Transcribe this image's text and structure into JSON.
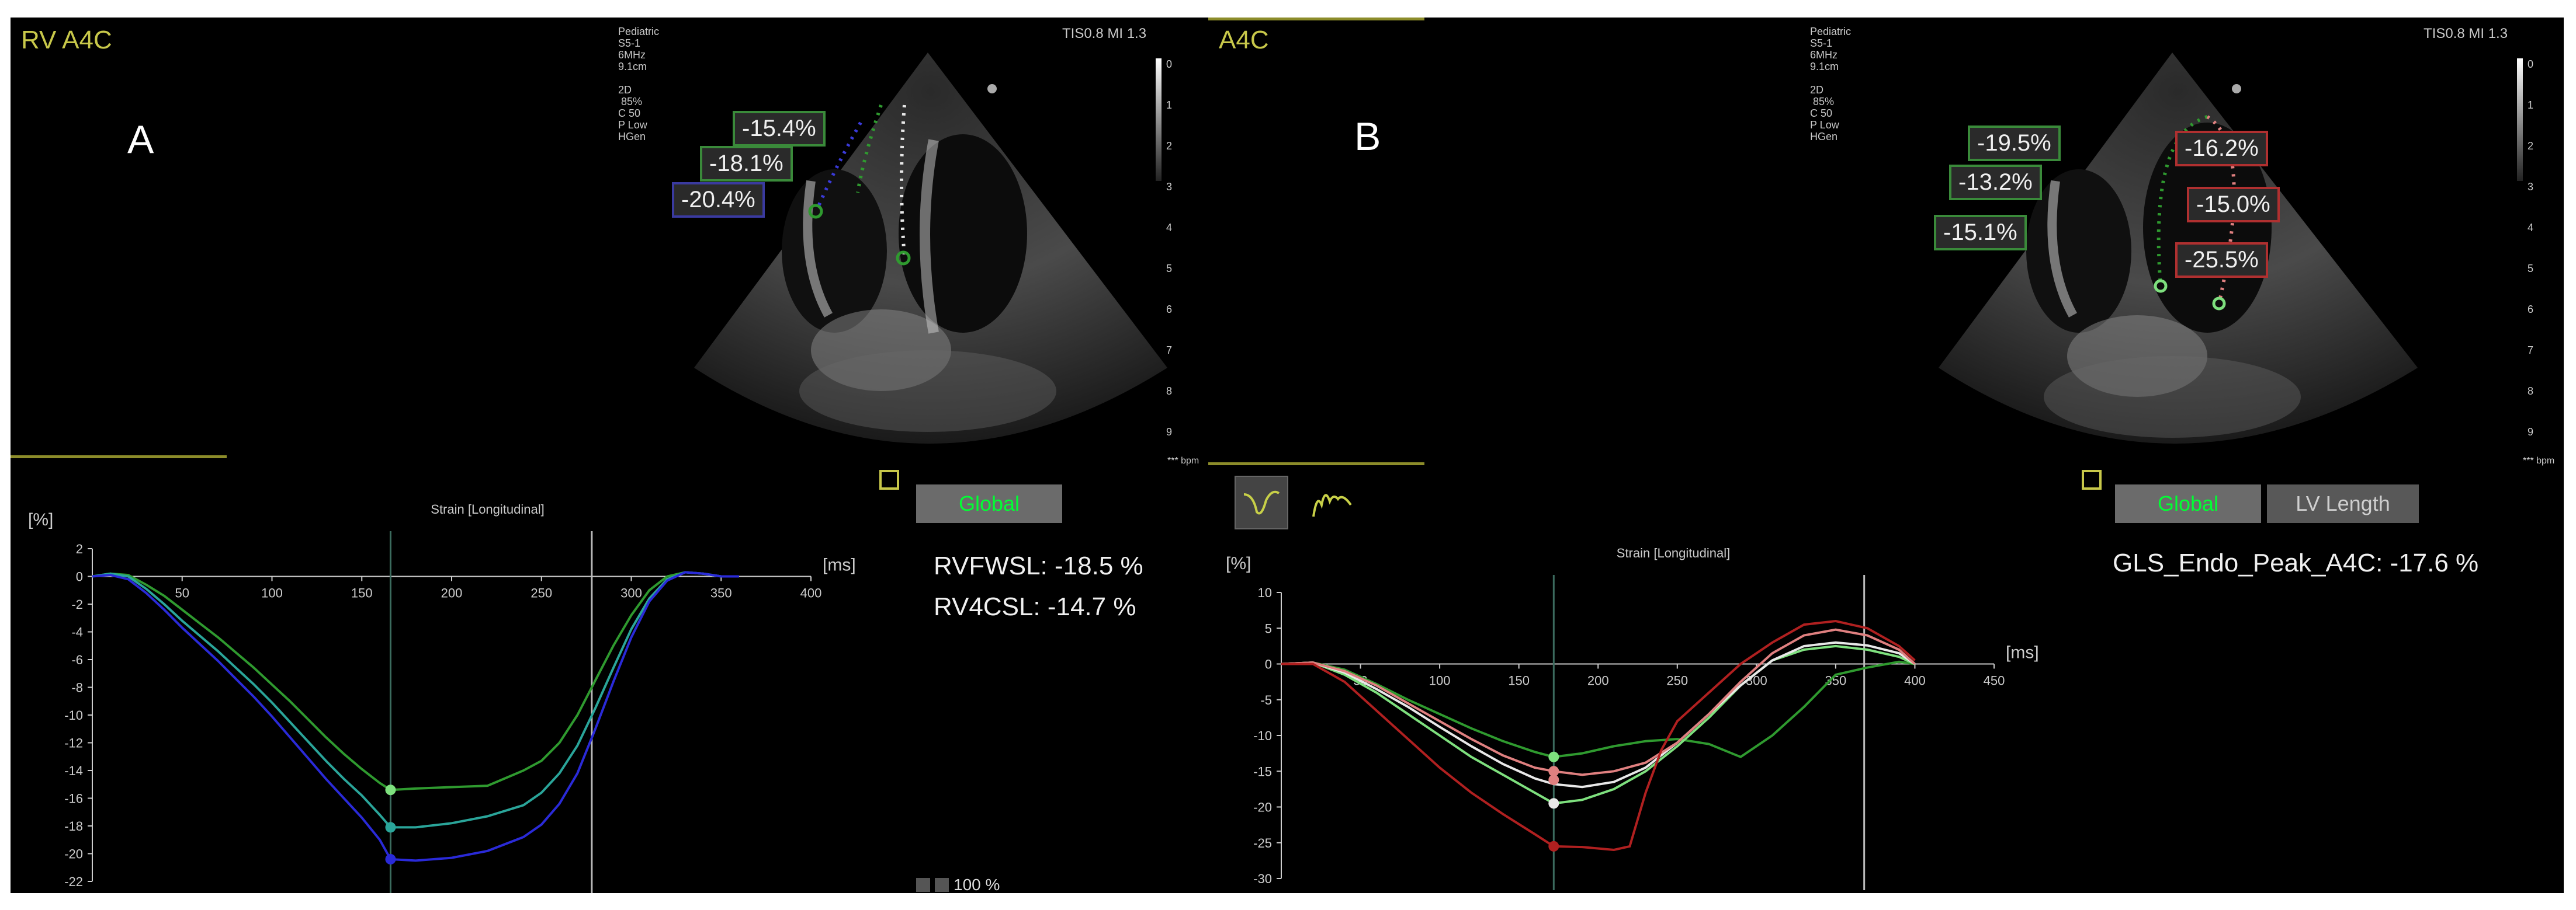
{
  "panel_a": {
    "view_title": "RV A4C",
    "letter": "A",
    "meta_lines": "Pediatric\nS5-1\n6MHz\n9.1cm\n\n2D\n 85%\nC 50\nP Low\nHGen",
    "ti_mi": "TIS0.8  MI 1.3",
    "segments": [
      "-15.4%",
      "-18.1%",
      "-20.4%"
    ],
    "depth_labels": [
      "0",
      "1",
      "2",
      "3",
      "4",
      "5",
      "6",
      "7",
      "8",
      "9"
    ],
    "bpm_label": "*** bpm",
    "global_label": "Global",
    "results": [
      "RVFWSL: -18.5 %",
      "RV4CSL: -14.7 %"
    ],
    "footer": "100 %"
  },
  "panel_b": {
    "view_title": "A4C",
    "letter": "B",
    "meta_lines": "Pediatric\nS5-1\n6MHz\n9.1cm\n\n2D\n 85%\nC 50\nP Low\nHGen",
    "ti_mi": "TIS0.8  MI 1.3",
    "segments_left": [
      "-19.5%",
      "-13.2%",
      "-15.1%"
    ],
    "segments_right": [
      "-16.2%",
      "-15.0%",
      "-25.5%"
    ],
    "depth_labels": [
      "0",
      "1",
      "2",
      "3",
      "4",
      "5",
      "6",
      "7",
      "8",
      "9"
    ],
    "bpm_label": "*** bpm",
    "global_label": "Global",
    "lv_length_label": "LV Length",
    "results": [
      "GLS_Endo_Peak_A4C: -17.6 %"
    ]
  },
  "colors": {
    "green": "#2f9a2f",
    "teal": "#2aa59a",
    "blue": "#2a2ad8",
    "red": "#b02020",
    "white": "#e8e8e8",
    "pink": "#e08080",
    "light_green": "#7ee07e"
  },
  "chart_data": [
    {
      "type": "line",
      "title": "Strain [Longitudinal]",
      "ylabel": "[%]",
      "xlabel": "[ms]",
      "xlim": [
        0,
        400
      ],
      "ylim": [
        -22,
        2
      ],
      "xticks": [
        50,
        100,
        150,
        200,
        250,
        300,
        350,
        400
      ],
      "yticks": [
        2,
        0,
        -2,
        -4,
        -6,
        -8,
        -10,
        -12,
        -14,
        -16,
        -18,
        -20,
        -22
      ],
      "markers_x": [
        166,
        278
      ],
      "series": [
        {
          "color": "green",
          "x": [
            0,
            10,
            20,
            30,
            40,
            50,
            60,
            70,
            80,
            90,
            100,
            110,
            120,
            130,
            140,
            150,
            160,
            166,
            180,
            200,
            220,
            240,
            250,
            260,
            270,
            280,
            290,
            300,
            310,
            320,
            330,
            340,
            350,
            360
          ],
          "y": [
            0,
            0.2,
            0.1,
            -0.6,
            -1.4,
            -2.4,
            -3.4,
            -4.4,
            -5.5,
            -6.6,
            -7.8,
            -9.0,
            -10.3,
            -11.6,
            -12.8,
            -13.9,
            -14.9,
            -15.4,
            -15.3,
            -15.2,
            -15.1,
            -14.0,
            -13.3,
            -12.0,
            -10.0,
            -7.5,
            -5.0,
            -2.8,
            -1.0,
            0.0,
            0.3,
            0.2,
            0.0,
            0.0
          ]
        },
        {
          "color": "teal",
          "x": [
            0,
            10,
            20,
            30,
            40,
            50,
            60,
            70,
            80,
            90,
            100,
            110,
            120,
            130,
            140,
            150,
            160,
            166,
            180,
            200,
            220,
            240,
            250,
            260,
            270,
            280,
            290,
            300,
            310,
            320,
            330,
            340,
            350,
            360
          ],
          "y": [
            0,
            0.2,
            0.0,
            -0.9,
            -2.0,
            -3.2,
            -4.3,
            -5.4,
            -6.6,
            -7.8,
            -9.1,
            -10.5,
            -11.9,
            -13.3,
            -14.6,
            -15.8,
            -17.2,
            -18.1,
            -18.1,
            -17.8,
            -17.3,
            -16.5,
            -15.6,
            -14.2,
            -12.2,
            -9.5,
            -6.6,
            -3.8,
            -1.6,
            -0.2,
            0.3,
            0.2,
            0.0,
            0.0
          ]
        },
        {
          "color": "blue",
          "x": [
            0,
            10,
            20,
            30,
            40,
            50,
            60,
            70,
            80,
            90,
            100,
            110,
            120,
            130,
            140,
            150,
            160,
            166,
            180,
            200,
            220,
            240,
            250,
            260,
            270,
            280,
            290,
            300,
            310,
            320,
            330,
            340,
            350,
            360
          ],
          "y": [
            0,
            0.1,
            -0.2,
            -1.2,
            -2.4,
            -3.7,
            -4.9,
            -6.1,
            -7.4,
            -8.7,
            -10.1,
            -11.6,
            -13.1,
            -14.6,
            -16.0,
            -17.4,
            -19.0,
            -20.4,
            -20.5,
            -20.3,
            -19.8,
            -18.8,
            -17.9,
            -16.4,
            -14.2,
            -11.0,
            -7.6,
            -4.4,
            -1.8,
            -0.3,
            0.3,
            0.2,
            0.0,
            0.0
          ]
        }
      ],
      "peaks": [
        {
          "x": 166,
          "y": -15.4,
          "color": "light_green"
        },
        {
          "x": 166,
          "y": -18.1,
          "color": "teal"
        },
        {
          "x": 166,
          "y": -20.4,
          "color": "blue"
        }
      ]
    },
    {
      "type": "line",
      "title": "Strain [Longitudinal]",
      "ylabel": "[%]",
      "xlabel": "[ms]",
      "xlim": [
        0,
        450
      ],
      "ylim": [
        -30,
        10
      ],
      "xticks": [
        50,
        100,
        150,
        200,
        250,
        300,
        350,
        400,
        450
      ],
      "yticks": [
        10,
        5,
        0,
        -5,
        -10,
        -15,
        -20,
        -25,
        -30
      ],
      "markers_x": [
        172,
        368
      ],
      "series": [
        {
          "color": "green",
          "x": [
            0,
            20,
            40,
            60,
            80,
            100,
            120,
            140,
            160,
            172,
            190,
            210,
            230,
            250,
            270,
            290,
            310,
            330,
            350,
            370,
            390,
            400
          ],
          "y": [
            0,
            0.2,
            -0.8,
            -2.8,
            -5.0,
            -7.0,
            -9.0,
            -10.8,
            -12.3,
            -13.0,
            -12.5,
            -11.5,
            -10.8,
            -10.5,
            -11.2,
            -13.0,
            -10.0,
            -6.0,
            -1.5,
            -0.5,
            0.3,
            0.0
          ]
        },
        {
          "color": "light_green",
          "x": [
            0,
            20,
            40,
            60,
            80,
            100,
            120,
            140,
            160,
            172,
            190,
            210,
            230,
            250,
            270,
            290,
            310,
            330,
            350,
            370,
            390,
            400
          ],
          "y": [
            0,
            0.2,
            -1.5,
            -4.0,
            -7.0,
            -10.0,
            -13.0,
            -15.5,
            -18.0,
            -19.5,
            -19.0,
            -17.5,
            -15.0,
            -11.5,
            -7.5,
            -3.0,
            0.5,
            2.0,
            2.5,
            2.0,
            1.0,
            0.0
          ]
        },
        {
          "color": "white",
          "x": [
            0,
            20,
            40,
            60,
            80,
            100,
            120,
            140,
            160,
            172,
            190,
            210,
            230,
            250,
            270,
            290,
            310,
            330,
            350,
            370,
            390,
            400
          ],
          "y": [
            0,
            0.2,
            -1.2,
            -3.5,
            -6.0,
            -8.8,
            -11.5,
            -14.0,
            -16.0,
            -16.8,
            -17.2,
            -16.5,
            -14.5,
            -11.0,
            -7.0,
            -3.0,
            0.5,
            2.5,
            3.0,
            2.6,
            1.5,
            0.0
          ]
        },
        {
          "color": "pink",
          "x": [
            0,
            20,
            40,
            60,
            80,
            100,
            120,
            140,
            160,
            172,
            190,
            210,
            230,
            250,
            270,
            290,
            310,
            330,
            350,
            370,
            390,
            400
          ],
          "y": [
            0,
            0.2,
            -1.0,
            -3.0,
            -5.5,
            -8.0,
            -10.5,
            -12.8,
            -14.5,
            -15.0,
            -15.5,
            -15.0,
            -13.8,
            -11.0,
            -7.0,
            -2.5,
            1.5,
            4.0,
            4.8,
            4.0,
            2.0,
            0.0
          ]
        },
        {
          "color": "red",
          "x": [
            0,
            20,
            40,
            60,
            80,
            100,
            120,
            140,
            160,
            172,
            190,
            210,
            220,
            230,
            240,
            250,
            270,
            290,
            310,
            330,
            350,
            370,
            390,
            400
          ],
          "y": [
            0,
            0.0,
            -2.5,
            -6.5,
            -10.5,
            -14.5,
            -18.0,
            -21.0,
            -23.8,
            -25.5,
            -25.6,
            -26.0,
            -25.5,
            -18.0,
            -12.0,
            -8.0,
            -4.0,
            0.0,
            3.0,
            5.5,
            6.0,
            5.0,
            2.5,
            0.5
          ]
        }
      ],
      "peaks": [
        {
          "x": 172,
          "y": -13.0,
          "color": "light_green"
        },
        {
          "x": 172,
          "y": -15.0,
          "color": "pink"
        },
        {
          "x": 172,
          "y": -16.2,
          "color": "pink"
        },
        {
          "x": 172,
          "y": -19.5,
          "color": "white"
        },
        {
          "x": 172,
          "y": -25.5,
          "color": "red"
        }
      ]
    }
  ]
}
